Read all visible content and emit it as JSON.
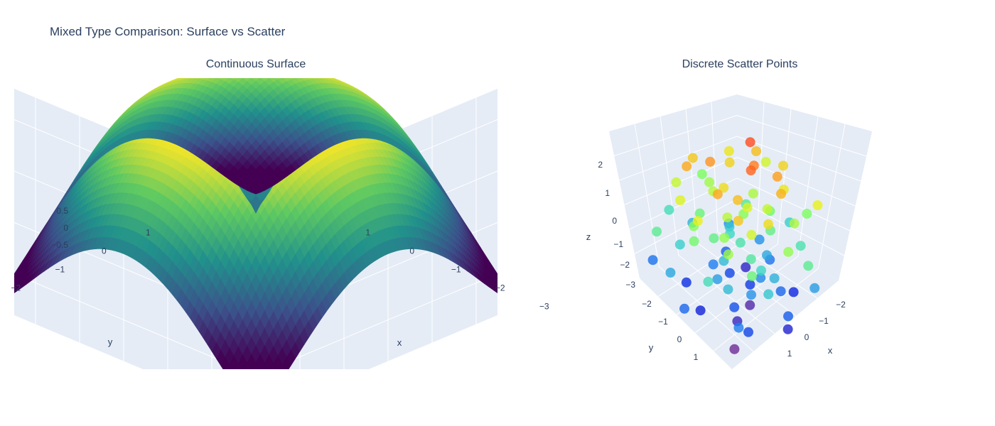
{
  "figure": {
    "title": "Mixed Type Comparison: Surface vs Scatter"
  },
  "chart_data": [
    {
      "type": "surface",
      "title": "Continuous Surface",
      "function": "z = sin(sqrt(x^2 + y^2))",
      "colorscale": "Viridis",
      "colors": [
        "#440154",
        "#3b528b",
        "#21918c",
        "#5ec962",
        "#fde725"
      ],
      "x_range": [
        -3,
        3
      ],
      "y_range": [
        -3,
        3
      ],
      "z_range": [
        -0.5,
        1
      ],
      "xlabel": "x",
      "ylabel": "y",
      "zlabel": "z",
      "x_ticks": [
        "−3",
        "−2",
        "−1",
        "0",
        "1"
      ],
      "y_ticks": [
        "−3",
        "−2",
        "−1",
        "0",
        "1"
      ],
      "z_ticks": [
        "−0.5",
        "0",
        "0.5"
      ]
    },
    {
      "type": "scatter",
      "title": "Discrete Scatter Points",
      "colorscale": "Jet",
      "colors": [
        "#7b2d8b",
        "#0a1fe0",
        "#1e7ff0",
        "#3ad6c8",
        "#7cff5a",
        "#e8f21a",
        "#ff9a1a",
        "#ff3322"
      ],
      "xlabel": "x",
      "ylabel": "y",
      "zlabel": "z",
      "x_ticks": [
        "−2",
        "−1",
        "0",
        "1"
      ],
      "y_ticks": [
        "−2",
        "−1",
        "0",
        "1"
      ],
      "z_ticks": [
        "−3",
        "−2",
        "−1",
        "0",
        "1",
        "2"
      ],
      "z_range": [
        -3,
        3
      ],
      "points": [
        [
          0.1,
          -0.3,
          2.8
        ],
        [
          0.6,
          0.2,
          2.6
        ],
        [
          0.4,
          -0.1,
          2.4
        ],
        [
          -0.5,
          0.3,
          2.2
        ],
        [
          0.8,
          -0.4,
          2.1
        ],
        [
          -0.9,
          0.6,
          2.0
        ],
        [
          0.2,
          0.8,
          2.0
        ],
        [
          1.1,
          -0.2,
          1.9
        ],
        [
          -0.3,
          -0.9,
          1.8
        ],
        [
          0.5,
          0.5,
          1.8
        ],
        [
          -1.2,
          0.1,
          1.7
        ],
        [
          0.9,
          0.9,
          1.7
        ],
        [
          -0.6,
          -0.4,
          1.6
        ],
        [
          0.3,
          -1.1,
          1.6
        ],
        [
          1.3,
          0.4,
          1.5
        ],
        [
          -0.2,
          0.2,
          1.5
        ],
        [
          0.7,
          -0.7,
          1.4
        ],
        [
          -1.0,
          -0.8,
          1.4
        ],
        [
          0.0,
          1.2,
          1.3
        ],
        [
          1.5,
          -0.9,
          1.3
        ],
        [
          -0.8,
          0.9,
          1.2
        ],
        [
          0.4,
          0.1,
          1.2
        ],
        [
          -0.4,
          -1.3,
          1.1
        ],
        [
          1.0,
          0.6,
          1.1
        ],
        [
          -1.4,
          0.4,
          1.0
        ],
        [
          0.6,
          -0.3,
          1.0
        ],
        [
          0.1,
          0.4,
          0.9
        ],
        [
          -0.7,
          0.0,
          0.9
        ],
        [
          1.2,
          -0.5,
          0.8
        ],
        [
          -0.1,
          -0.6,
          0.8
        ],
        [
          0.8,
          1.1,
          0.7
        ],
        [
          -1.1,
          -0.3,
          0.7
        ],
        [
          0.3,
          0.7,
          0.6
        ],
        [
          1.6,
          0.1,
          0.6
        ],
        [
          -0.5,
          0.8,
          0.5
        ],
        [
          0.0,
          -0.2,
          0.5
        ],
        [
          -1.6,
          -0.6,
          0.4
        ],
        [
          0.9,
          -1.2,
          0.4
        ],
        [
          0.2,
          -0.8,
          0.3
        ],
        [
          -0.3,
          1.0,
          0.3
        ],
        [
          1.3,
          0.9,
          0.2
        ],
        [
          -0.9,
          0.2,
          0.2
        ],
        [
          0.5,
          -0.5,
          0.1
        ],
        [
          -0.2,
          0.5,
          0.1
        ],
        [
          1.8,
          -0.3,
          0.0
        ],
        [
          -1.3,
          1.1,
          0.0
        ],
        [
          0.7,
          0.3,
          -0.1
        ],
        [
          -0.6,
          -0.9,
          -0.1
        ],
        [
          0.1,
          0.0,
          -0.2
        ],
        [
          1.1,
          -0.8,
          -0.2
        ],
        [
          -1.8,
          0.2,
          -0.3
        ],
        [
          0.4,
          1.3,
          -0.3
        ],
        [
          -0.4,
          -0.2,
          -0.4
        ],
        [
          0.9,
          0.2,
          -0.4
        ],
        [
          -1.0,
          0.7,
          -0.5
        ],
        [
          0.2,
          -1.4,
          -0.5
        ],
        [
          1.4,
          0.5,
          -0.6
        ],
        [
          -0.7,
          -0.5,
          -0.6
        ],
        [
          0.6,
          0.9,
          -0.7
        ],
        [
          -0.1,
          0.3,
          -0.7
        ],
        [
          1.0,
          -0.1,
          -0.8
        ],
        [
          -1.5,
          -0.2,
          -0.8
        ],
        [
          0.3,
          -0.6,
          -0.9
        ],
        [
          -0.8,
          1.2,
          -0.9
        ],
        [
          1.7,
          -0.6,
          -1.0
        ],
        [
          0.0,
          0.6,
          -1.0
        ],
        [
          -0.3,
          -1.0,
          -1.1
        ],
        [
          0.8,
          0.4,
          -1.1
        ],
        [
          -1.2,
          -1.0,
          -1.2
        ],
        [
          0.5,
          -0.2,
          -1.2
        ],
        [
          1.2,
          1.2,
          -1.3
        ],
        [
          -0.6,
          0.1,
          -1.3
        ],
        [
          0.1,
          -0.9,
          -1.4
        ],
        [
          -1.7,
          0.8,
          -1.4
        ],
        [
          0.9,
          -0.4,
          -1.5
        ],
        [
          -0.2,
          1.4,
          -1.5
        ],
        [
          1.5,
          0.0,
          -1.6
        ],
        [
          -0.9,
          -0.6,
          -1.6
        ],
        [
          0.4,
          0.5,
          -1.7
        ],
        [
          -0.5,
          -0.3,
          -1.8
        ],
        [
          1.1,
          0.8,
          -1.8
        ],
        [
          0.0,
          -0.4,
          -1.9
        ],
        [
          -1.1,
          0.4,
          -2.0
        ],
        [
          0.7,
          -1.0,
          -2.1
        ],
        [
          -0.4,
          0.7,
          -2.2
        ],
        [
          1.3,
          -0.2,
          -2.3
        ],
        [
          -0.8,
          -1.1,
          -2.4
        ],
        [
          0.2,
          0.2,
          -2.5
        ],
        [
          -0.1,
          -0.5,
          -2.7
        ],
        [
          0.5,
          0.6,
          -2.9
        ]
      ]
    }
  ]
}
